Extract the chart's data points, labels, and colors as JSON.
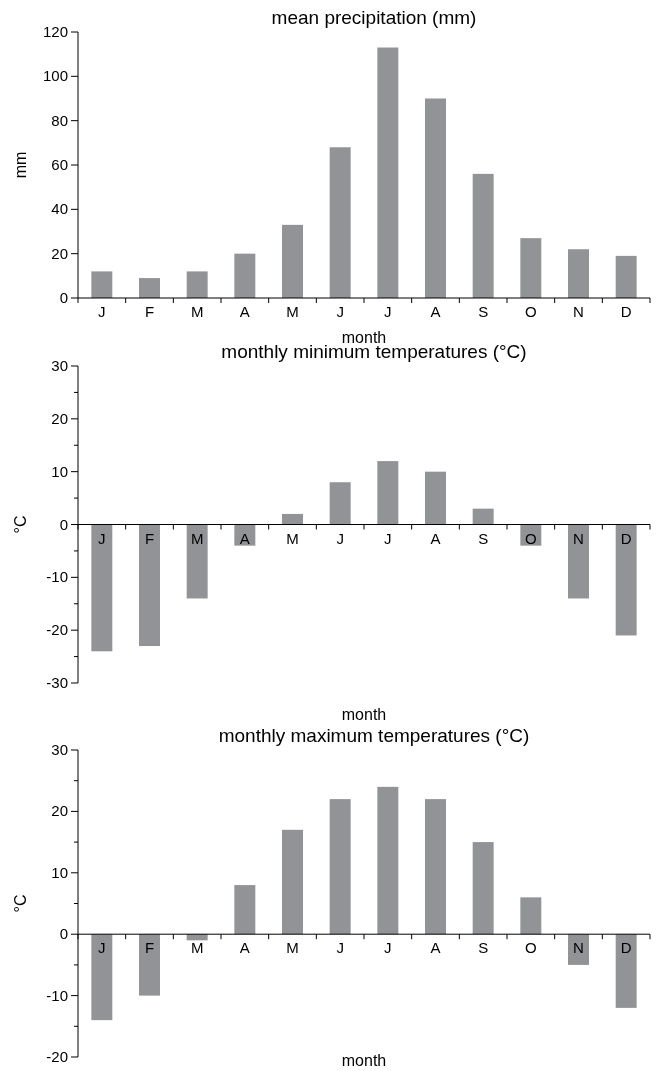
{
  "chart_data": [
    {
      "type": "bar",
      "title": "mean precipitation (mm)",
      "xlabel": "month",
      "ylabel": "mm",
      "categories": [
        "J",
        "F",
        "M",
        "A",
        "M",
        "J",
        "J",
        "A",
        "S",
        "O",
        "N",
        "D"
      ],
      "values": [
        12,
        9,
        12,
        20,
        33,
        68,
        113,
        90,
        56,
        27,
        22,
        19
      ],
      "color": "#929396",
      "ylim": [
        0,
        120
      ],
      "yticks": [
        0,
        20,
        40,
        60,
        80,
        100,
        120
      ]
    },
    {
      "type": "bar",
      "title": "monthly minimum temperatures (°C)",
      "xlabel": "month",
      "ylabel": "°C",
      "categories": [
        "J",
        "F",
        "M",
        "A",
        "M",
        "J",
        "J",
        "A",
        "S",
        "O",
        "N",
        "D"
      ],
      "values": [
        -24,
        -23,
        -14,
        -4,
        2,
        8,
        12,
        10,
        3,
        -4,
        -14,
        -21
      ],
      "color": "#929396",
      "ylim": [
        -30,
        30
      ],
      "yticks": [
        -30,
        {
          "value": -25,
          "label": null
        },
        -20,
        {
          "value": -15,
          "label": null
        },
        -10,
        {
          "value": -5,
          "label": null
        },
        0,
        {
          "value": 5,
          "label": null
        },
        10,
        {
          "value": 15,
          "label": null
        },
        20,
        {
          "value": 25,
          "label": null
        },
        30
      ]
    },
    {
      "type": "bar",
      "title": "monthly maximum temperatures (°C)",
      "xlabel": "month",
      "ylabel": "°C",
      "categories": [
        "J",
        "F",
        "M",
        "A",
        "M",
        "J",
        "J",
        "A",
        "S",
        "O",
        "N",
        "D"
      ],
      "values": [
        -14,
        -10,
        -1,
        8,
        17,
        22,
        24,
        22,
        15,
        6,
        -5,
        -12
      ],
      "color": "#929396",
      "ylim": [
        -20,
        30
      ],
      "yticks": [
        -20,
        {
          "value": -15,
          "label": null
        },
        -10,
        {
          "value": -5,
          "label": null
        },
        0,
        {
          "value": 5,
          "label": null
        },
        10,
        {
          "value": 15,
          "label": null
        },
        20,
        {
          "value": 25,
          "label": null
        },
        30
      ]
    }
  ]
}
